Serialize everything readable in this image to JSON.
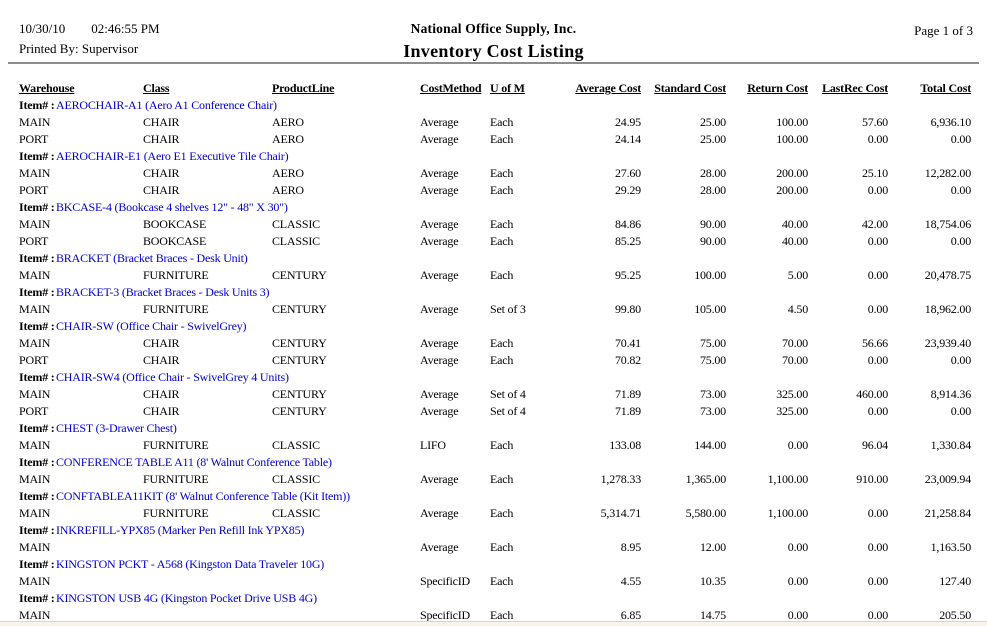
{
  "header": {
    "printed_date": "10/30/10",
    "printed_time": "02:46:55 PM",
    "printed_by": "Printed By: Supervisor",
    "company": "National Office Supply, Inc.",
    "title": "Inventory Cost Listing",
    "page_label": "Page 1 of 3"
  },
  "accent_colors": {
    "item_link_blue": "#0000cc",
    "rule_gray": "#8c8c8c",
    "bottom_strip": "#f8f4ea"
  },
  "table": {
    "item_label": "Item# :",
    "columns": [
      "Warehouse",
      "Class",
      "ProductLine",
      "CostMethod",
      "U of M",
      "Average Cost",
      "Standard Cost",
      "Return Cost",
      "LastRec Cost",
      "Total Cost"
    ],
    "items": [
      {
        "id": "AEROCHAIR-A1 (Aero A1 Conference Chair)",
        "rows": [
          [
            "MAIN",
            "CHAIR",
            "AERO",
            "Average",
            "Each",
            "24.95",
            "25.00",
            "100.00",
            "57.60",
            "6,936.10"
          ],
          [
            "PORT",
            "CHAIR",
            "AERO",
            "Average",
            "Each",
            "24.14",
            "25.00",
            "100.00",
            "0.00",
            "0.00"
          ]
        ]
      },
      {
        "id": "AEROCHAIR-E1 (Aero E1 Executive Tile Chair)",
        "rows": [
          [
            "MAIN",
            "CHAIR",
            "AERO",
            "Average",
            "Each",
            "27.60",
            "28.00",
            "200.00",
            "25.10",
            "12,282.00"
          ],
          [
            "PORT",
            "CHAIR",
            "AERO",
            "Average",
            "Each",
            "29.29",
            "28.00",
            "200.00",
            "0.00",
            "0.00"
          ]
        ]
      },
      {
        "id": "BKCASE-4 (Bookcase 4 shelves 12\" - 48\" X 30\")",
        "rows": [
          [
            "MAIN",
            "BOOKCASE",
            "CLASSIC",
            "Average",
            "Each",
            "84.86",
            "90.00",
            "40.00",
            "42.00",
            "18,754.06"
          ],
          [
            "PORT",
            "BOOKCASE",
            "CLASSIC",
            "Average",
            "Each",
            "85.25",
            "90.00",
            "40.00",
            "0.00",
            "0.00"
          ]
        ]
      },
      {
        "id": "BRACKET (Bracket Braces - Desk Unit)",
        "rows": [
          [
            "MAIN",
            "FURNITURE",
            "CENTURY",
            "Average",
            "Each",
            "95.25",
            "100.00",
            "5.00",
            "0.00",
            "20,478.75"
          ]
        ]
      },
      {
        "id": "BRACKET-3 (Bracket Braces - Desk Units 3)",
        "rows": [
          [
            "MAIN",
            "FURNITURE",
            "CENTURY",
            "Average",
            "Set of 3",
            "99.80",
            "105.00",
            "4.50",
            "0.00",
            "18,962.00"
          ]
        ]
      },
      {
        "id": "CHAIR-SW (Office Chair - SwivelGrey)",
        "rows": [
          [
            "MAIN",
            "CHAIR",
            "CENTURY",
            "Average",
            "Each",
            "70.41",
            "75.00",
            "70.00",
            "56.66",
            "23,939.40"
          ],
          [
            "PORT",
            "CHAIR",
            "CENTURY",
            "Average",
            "Each",
            "70.82",
            "75.00",
            "70.00",
            "0.00",
            "0.00"
          ]
        ]
      },
      {
        "id": "CHAIR-SW4 (Office Chair - SwivelGrey 4 Units)",
        "rows": [
          [
            "MAIN",
            "CHAIR",
            "CENTURY",
            "Average",
            "Set of 4",
            "71.89",
            "73.00",
            "325.00",
            "460.00",
            "8,914.36"
          ],
          [
            "PORT",
            "CHAIR",
            "CENTURY",
            "Average",
            "Set of 4",
            "71.89",
            "73.00",
            "325.00",
            "0.00",
            "0.00"
          ]
        ]
      },
      {
        "id": "CHEST (3-Drawer Chest)",
        "rows": [
          [
            "MAIN",
            "FURNITURE",
            "CLASSIC",
            "LIFO",
            "Each",
            "133.08",
            "144.00",
            "0.00",
            "96.04",
            "1,330.84"
          ]
        ]
      },
      {
        "id": "CONFERENCE TABLE A11 (8' Walnut Conference Table)",
        "rows": [
          [
            "MAIN",
            "FURNITURE",
            "CLASSIC",
            "Average",
            "Each",
            "1,278.33",
            "1,365.00",
            "1,100.00",
            "910.00",
            "23,009.94"
          ]
        ]
      },
      {
        "id": "CONFTABLEA11KIT (8' Walnut Conference Table (Kit Item))",
        "rows": [
          [
            "MAIN",
            "FURNITURE",
            "CLASSIC",
            "Average",
            "Each",
            "5,314.71",
            "5,580.00",
            "1,100.00",
            "0.00",
            "21,258.84"
          ]
        ]
      },
      {
        "id": "INKREFILL-YPX85 (Marker Pen Refill Ink YPX85)",
        "rows": [
          [
            "MAIN",
            "",
            "",
            "Average",
            "Each",
            "8.95",
            "12.00",
            "0.00",
            "0.00",
            "1,163.50"
          ]
        ]
      },
      {
        "id": "KINGSTON PCKT - A568 (Kingston Data Traveler 10G)",
        "rows": [
          [
            "MAIN",
            "",
            "",
            "SpecificID",
            "Each",
            "4.55",
            "10.35",
            "0.00",
            "0.00",
            "127.40"
          ]
        ]
      },
      {
        "id": "KINGSTON USB 4G (Kingston Pocket Drive USB 4G)",
        "rows": [
          [
            "MAIN",
            "",
            "",
            "SpecificID",
            "Each",
            "6.85",
            "14.75",
            "0.00",
            "0.00",
            "205.50"
          ]
        ]
      }
    ]
  }
}
